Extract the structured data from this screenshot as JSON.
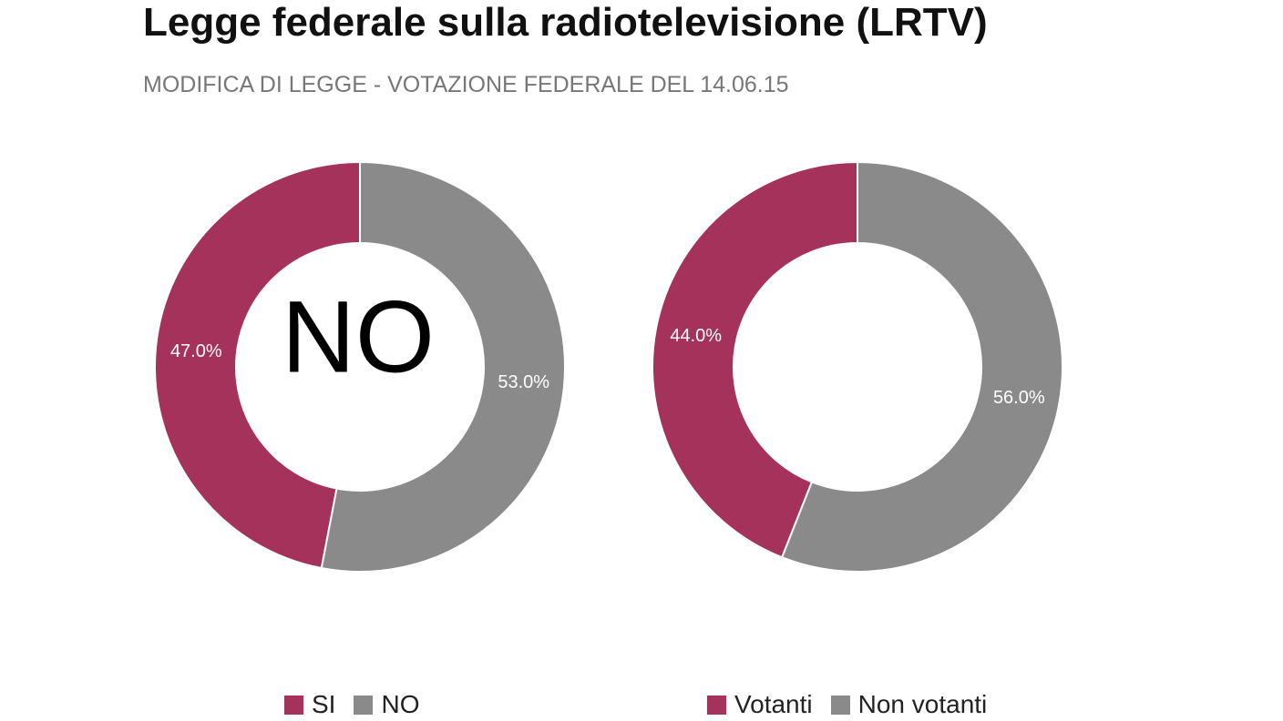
{
  "title": "Legge federale sulla radiotelevisione (LRTV)",
  "subtitle": "MODIFICA DI LEGGE - VOTAZIONE FEDERALE DEL 14.06.15",
  "colors": {
    "primary": "#a5325b",
    "secondary": "#8a8a8a"
  },
  "chart_data": [
    {
      "type": "pie",
      "donut": true,
      "center_label": "NO",
      "categories": [
        "SI",
        "NO"
      ],
      "values": [
        47.0,
        53.0
      ],
      "labels": [
        "47.0%",
        "53.0%"
      ],
      "legend": [
        "SI",
        "NO"
      ],
      "legend_position": "bottom"
    },
    {
      "type": "pie",
      "donut": true,
      "center_label": "",
      "categories": [
        "Votanti",
        "Non votanti"
      ],
      "values": [
        44.0,
        56.0
      ],
      "labels": [
        "44.0%",
        "56.0%"
      ],
      "legend": [
        "Votanti",
        "Non votanti"
      ],
      "legend_position": "bottom"
    }
  ]
}
